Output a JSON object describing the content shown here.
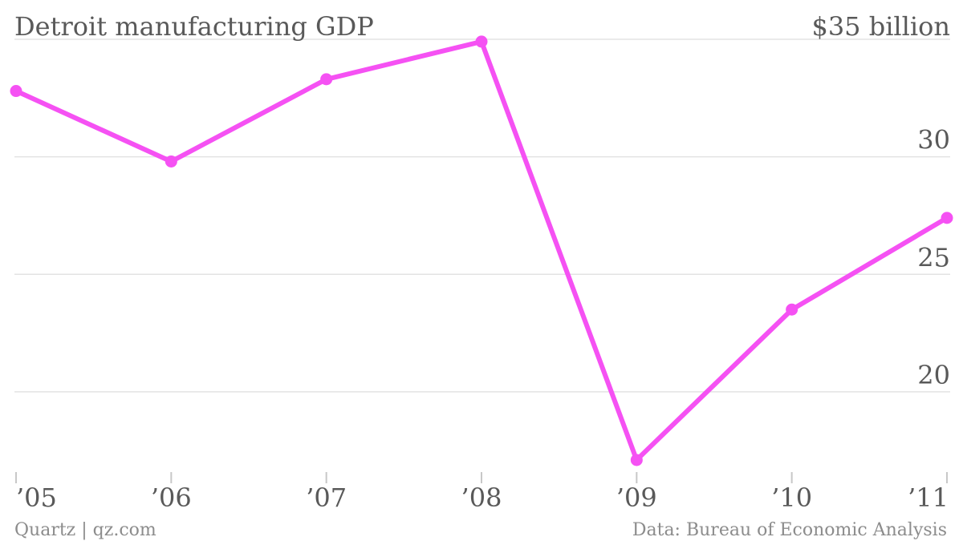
{
  "colors": {
    "line": "#f551f3",
    "text": "#595959",
    "footer_text": "#8c8c8c",
    "grid": "#e3e3e3",
    "tick": "#c8c8c8"
  },
  "chart_data": {
    "type": "line",
    "title": "Detroit manufacturing GDP",
    "top_label": "$35 billion",
    "categories": [
      "’05",
      "’06",
      "’07",
      "’08",
      "’09",
      "’10",
      "’11"
    ],
    "series": [
      {
        "values": [
          32.8,
          29.8,
          33.3,
          34.9,
          17.1,
          23.5,
          27.4
        ]
      }
    ],
    "ylim": [
      15.7,
      35
    ],
    "yticks": [
      20,
      25,
      30,
      35
    ],
    "ytick_labels": [
      "20",
      "25",
      "30",
      ""
    ],
    "grid": true,
    "y_axis_position": "right"
  },
  "footer": {
    "source_left": "Quartz | qz.com",
    "source_right": "Data: Bureau of Economic Analysis"
  }
}
